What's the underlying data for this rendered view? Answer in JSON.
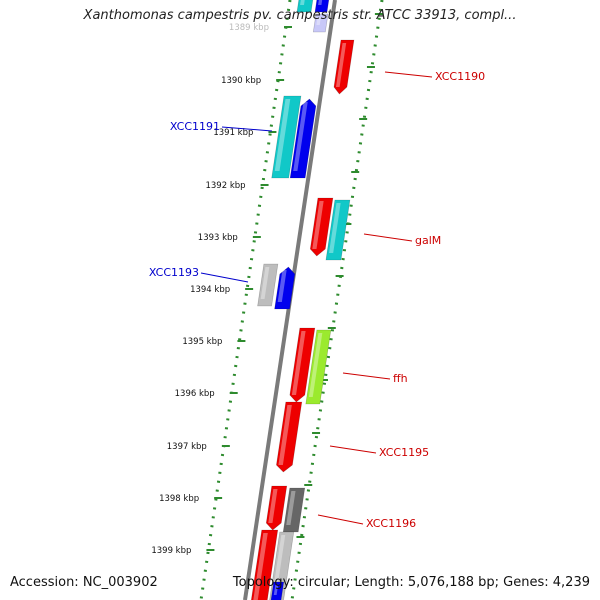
{
  "title": "Xanthomonas campestris pv. campestris str. ATCC 33913, compl...",
  "footer": {
    "accession": "Accession: NC_003902",
    "topology": "Topology: circular; Length: 5,076,188 bp; Genes: 4,239"
  },
  "ticks": [
    "1389 kbp",
    "1390 kbp",
    "1391 kbp",
    "1392 kbp",
    "1393 kbp",
    "1394 kbp",
    "1395 kbp",
    "1396 kbp",
    "1397 kbp",
    "1398 kbp",
    "1399 kbp"
  ],
  "gene_labels": [
    {
      "text": "XCC1190",
      "strand": "plus",
      "color": "#cc0000"
    },
    {
      "text": "XCC1191",
      "strand": "minus",
      "color": "#0000cc"
    },
    {
      "text": "galM",
      "strand": "plus",
      "color": "#cc0000"
    },
    {
      "text": "XCC1193",
      "strand": "minus",
      "color": "#0000cc"
    },
    {
      "text": "ffh",
      "strand": "plus",
      "color": "#cc0000"
    },
    {
      "text": "XCC1195",
      "strand": "plus",
      "color": "#cc0000"
    },
    {
      "text": "XCC1196",
      "strand": "plus",
      "color": "#cc0000"
    }
  ],
  "colors": {
    "backbone": "#7a7a7a",
    "tick_dots": "#2e8b2e",
    "red": "#ee0000",
    "blue": "#0000ee",
    "cyan": "#11c8c8",
    "lime": "#9bea2e",
    "gray": "#bdbdbd",
    "darkgray": "#666666"
  }
}
